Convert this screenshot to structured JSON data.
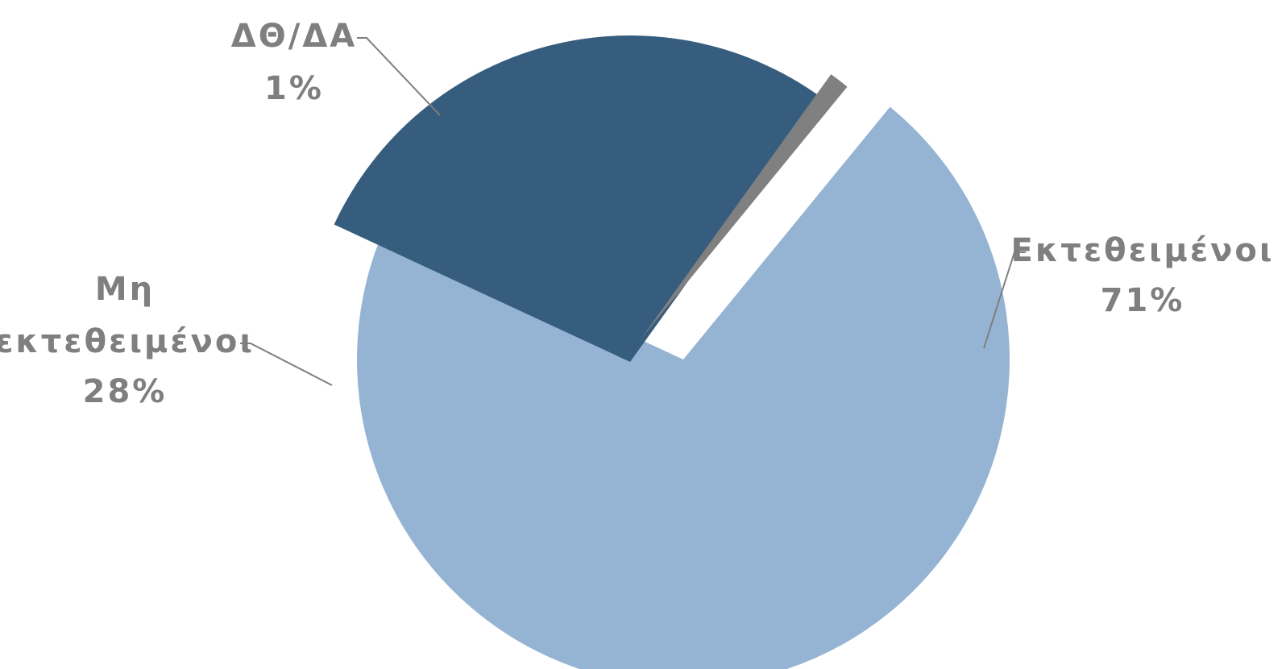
{
  "chart_data": {
    "type": "pie",
    "title": "",
    "slices": [
      {
        "name": "Εκτεθειμένοι",
        "label_lines": [
          "Εκτεθειμένοι"
        ],
        "value": 71,
        "value_label": "71%",
        "color": "#95b4d3"
      },
      {
        "name": "Μη εκτεθειμένοι",
        "label_lines": [
          "Μη",
          "εκτεθειμένοι"
        ],
        "value": 28,
        "value_label": "28%",
        "color": "#365d7e"
      },
      {
        "name": "ΔΘ/ΔΑ",
        "label_lines": [
          "ΔΘ/ΔΑ"
        ],
        "value": 1,
        "value_label": "1%",
        "color": "#808080"
      }
    ],
    "exploded": true,
    "legend": "none",
    "label_color": "#7f7f7f"
  }
}
